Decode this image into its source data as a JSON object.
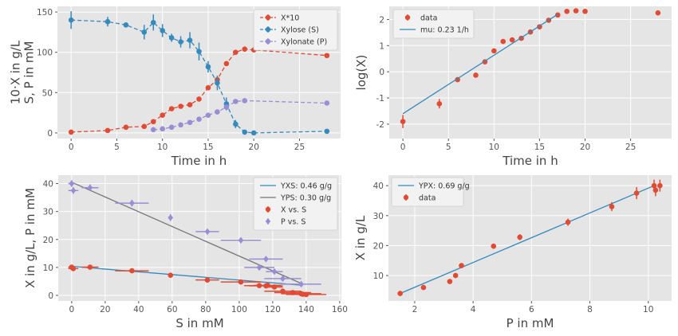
{
  "chart_data": [
    {
      "type": "scatter",
      "xlabel": "Time in h",
      "ylabel": "10·X in g/L\nS, P in mM",
      "xlim": [
        -1.5,
        29.5
      ],
      "ylim": [
        -7,
        157
      ],
      "xticks": [
        0,
        5,
        10,
        15,
        20,
        25
      ],
      "yticks": [
        0,
        50,
        100,
        150
      ],
      "grid": true,
      "legend": "top-right",
      "series": [
        {
          "name": "X*10",
          "color": "#e24a33",
          "marker": "circle",
          "line": "dashed",
          "x": [
            0,
            4,
            6,
            8,
            9,
            10,
            11,
            12,
            13,
            14,
            15,
            16,
            17,
            18,
            19,
            20,
            28
          ],
          "y": [
            1,
            3,
            7,
            8,
            14,
            22,
            30,
            33,
            35,
            42,
            56,
            66,
            86,
            100,
            104,
            103,
            96
          ],
          "err": [
            1,
            1,
            1,
            1,
            1,
            1,
            1,
            1,
            1,
            1,
            1,
            1,
            1,
            1,
            1,
            1,
            1
          ]
        },
        {
          "name": "Xylose (S)",
          "color": "#348abd",
          "marker": "circle",
          "line": "dashed",
          "x": [
            0,
            4,
            6,
            8,
            9,
            10,
            11,
            12,
            13,
            14,
            15,
            16,
            17,
            18,
            19,
            20,
            28
          ],
          "y": [
            140,
            138,
            134,
            125,
            137,
            127,
            118,
            113,
            115,
            101,
            82,
            62,
            36,
            11,
            1,
            0,
            2
          ],
          "err": [
            11,
            6,
            2,
            9,
            10,
            8,
            5,
            7,
            10,
            11,
            7,
            9,
            8,
            5,
            2,
            1,
            1
          ]
        },
        {
          "name": "Xylonate (P)",
          "color": "#988ed5",
          "marker": "circle",
          "line": "dashed",
          "x": [
            9,
            10,
            11,
            12,
            13,
            14,
            15,
            16,
            17,
            18,
            19,
            28
          ],
          "y": [
            4,
            5,
            7,
            10,
            13,
            17,
            22,
            26,
            32,
            39,
            40,
            37
          ],
          "err": [
            1,
            1,
            1,
            1,
            1,
            1,
            1,
            1,
            1,
            1,
            1,
            1
          ]
        }
      ]
    },
    {
      "type": "scatter",
      "xlabel": "Time in h",
      "ylabel": "log(X)",
      "xlim": [
        -1.5,
        29.5
      ],
      "ylim": [
        -2.55,
        2.5
      ],
      "xticks": [
        0,
        5,
        10,
        15,
        20,
        25
      ],
      "yticks": [
        -2,
        -1,
        0,
        1,
        2
      ],
      "grid": true,
      "legend": "top-left",
      "series": [
        {
          "name": "data",
          "color": "#e24a33",
          "marker": "circle",
          "line": "none",
          "x": [
            0,
            4,
            6,
            8,
            9,
            10,
            11,
            12,
            13,
            14,
            15,
            16,
            17,
            18,
            19,
            20,
            28
          ],
          "y": [
            -1.9,
            -1.22,
            -0.3,
            -0.13,
            0.38,
            0.8,
            1.16,
            1.22,
            1.28,
            1.52,
            1.72,
            1.97,
            2.17,
            2.31,
            2.33,
            2.31,
            2.25
          ],
          "err": [
            0.25,
            0.18,
            0.05,
            0.05,
            0.05,
            0.05,
            0.05,
            0.05,
            0.05,
            0.05,
            0.05,
            0.05,
            0.05,
            0.05,
            0.05,
            0.05,
            0.05
          ]
        },
        {
          "name": "mu: 0.23 1/h",
          "color": "#348abd",
          "marker": "none",
          "line": "solid",
          "x": [
            0,
            17
          ],
          "y": [
            -1.6,
            2.2
          ]
        }
      ]
    },
    {
      "type": "scatter",
      "xlabel": "S in mM",
      "ylabel": "X in g/L, P in mM",
      "xlim": [
        -8,
        161
      ],
      "ylim": [
        -2,
        43
      ],
      "xticks": [
        0,
        20,
        40,
        60,
        80,
        100,
        120,
        140,
        160
      ],
      "yticks": [
        0,
        10,
        20,
        30,
        40
      ],
      "grid": true,
      "legend": "top-right",
      "series": [
        {
          "name": "YXS: 0.46 g/g",
          "color": "#348abd",
          "marker": "none",
          "line": "solid",
          "x": [
            0,
            138
          ],
          "y": [
            10.4,
            3.6
          ]
        },
        {
          "name": "YPS: 0.30 g/g",
          "color": "#777777",
          "marker": "none",
          "line": "solid",
          "x": [
            0,
            138
          ],
          "y": [
            40.5,
            4
          ]
        },
        {
          "name": "X vs. S",
          "color": "#e24a33",
          "marker": "circle",
          "line": "none",
          "x": [
            0,
            1,
            11,
            36,
            59,
            81,
            101,
            112,
            116,
            117,
            121,
            126,
            132,
            137,
            138,
            140
          ],
          "y": [
            10.1,
            9.6,
            10.1,
            8.8,
            7.2,
            5.5,
            4.8,
            3.5,
            3.4,
            3.6,
            3,
            1.5,
            1,
            0.6,
            0.4,
            0.3
          ],
          "xerr": [
            2,
            3,
            5,
            10,
            1,
            7,
            12,
            9,
            10,
            8,
            5,
            11,
            11,
            12,
            7,
            12
          ]
        },
        {
          "name": "P vs. S",
          "color": "#988ed5",
          "marker": "diamond",
          "line": "none",
          "x": [
            0,
            1,
            11,
            36,
            59,
            81,
            101,
            112,
            116,
            121,
            126,
            137
          ],
          "y": [
            40,
            37.5,
            38.5,
            33,
            27.8,
            22.8,
            19.7,
            10,
            13,
            8.5,
            6,
            4
          ],
          "xerr": [
            2,
            3,
            5,
            10,
            1,
            7,
            12,
            9,
            10,
            5,
            11,
            12
          ],
          "yerr": [
            1.2,
            1.2,
            1.2,
            1.2,
            1.2,
            0.5,
            0.5,
            0.5,
            0.5,
            0.5,
            0.5,
            0.5
          ]
        }
      ]
    },
    {
      "type": "scatter",
      "xlabel": "P in mM",
      "ylabel": "X in g/L",
      "xlim": [
        1.1,
        10.8
      ],
      "ylim": [
        1.5,
        43.5
      ],
      "xticks": [
        2,
        4,
        6,
        8,
        10
      ],
      "yticks": [
        10,
        20,
        30,
        40
      ],
      "grid": true,
      "legend": "top-left",
      "series": [
        {
          "name": "YPX: 0.69 g/g",
          "color": "#348abd",
          "marker": "none",
          "line": "solid",
          "x": [
            1.5,
            10.2
          ],
          "y": [
            4,
            40
          ]
        },
        {
          "name": "data",
          "color": "#e24a33",
          "marker": "circle",
          "line": "none",
          "x": [
            1.5,
            2.3,
            3.2,
            3.4,
            3.6,
            4.7,
            5.6,
            7.25,
            8.75,
            9.6,
            10.2,
            10.25,
            10.4
          ],
          "y": [
            4,
            6,
            8,
            10,
            13.3,
            19.8,
            22.8,
            27.8,
            33,
            37.5,
            40,
            38.5,
            40
          ],
          "yerr": [
            0.8,
            0.8,
            0.8,
            0.8,
            0.8,
            0.8,
            1,
            1.2,
            1.5,
            2,
            2,
            2,
            2
          ]
        }
      ]
    }
  ]
}
